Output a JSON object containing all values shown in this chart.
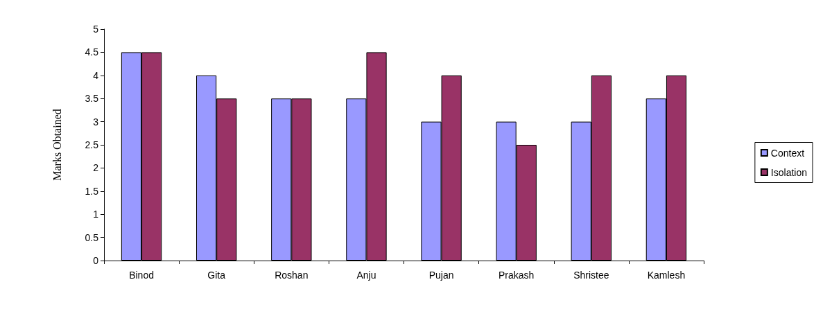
{
  "chart_data": {
    "type": "bar",
    "ylabel": "Marks Obtained",
    "categories": [
      "Binod",
      "Gita",
      "Roshan",
      "Anju",
      "Pujan",
      "Prakash",
      "Shristee",
      "Kamlesh"
    ],
    "series": [
      {
        "name": "Context",
        "color": "#9999ff",
        "values": [
          4.5,
          4,
          3.5,
          3.5,
          3,
          3,
          3,
          3.5
        ]
      },
      {
        "name": "Isolation",
        "color": "#993366",
        "values": [
          4.5,
          3.5,
          3.5,
          4.5,
          4,
          2.5,
          4,
          4
        ]
      }
    ],
    "ylim": [
      0,
      5
    ],
    "yticks": [
      0,
      0.5,
      1,
      1.5,
      2,
      2.5,
      3,
      3.5,
      4,
      4.5,
      5
    ],
    "grid": false,
    "legend": "right"
  }
}
